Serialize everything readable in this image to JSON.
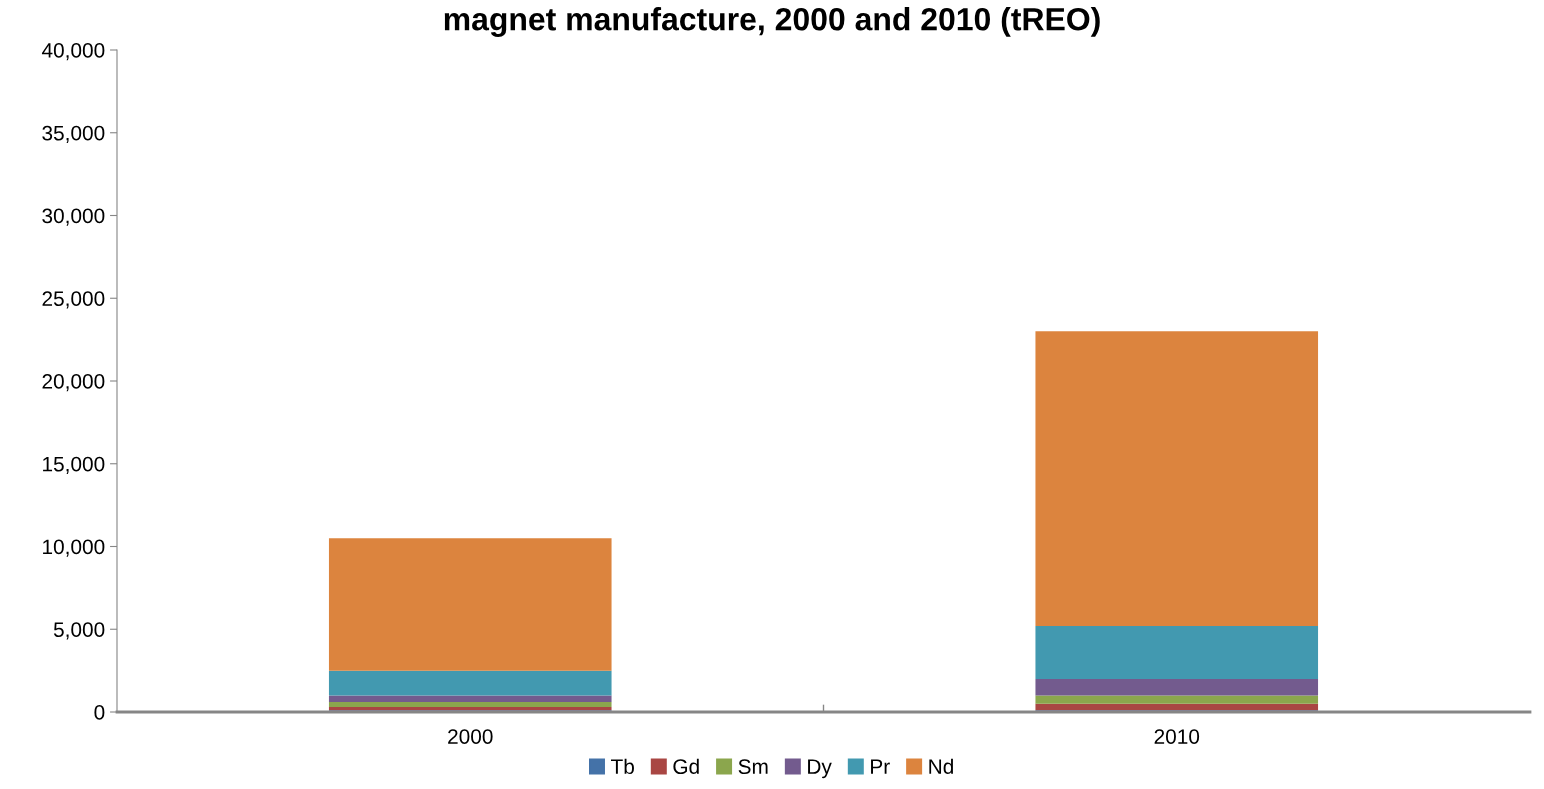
{
  "chart_data": {
    "type": "bar",
    "stacked": true,
    "title": "magnet manufacture, 2000 and 2010 (tREO)",
    "categories": [
      "2000",
      "2010"
    ],
    "series": [
      {
        "name": "Tb",
        "color": "#4472a8",
        "values": [
          100,
          100
        ]
      },
      {
        "name": "Gd",
        "color": "#a94643",
        "values": [
          200,
          400
        ]
      },
      {
        "name": "Sm",
        "color": "#8ba64d",
        "values": [
          300,
          500
        ]
      },
      {
        "name": "Dy",
        "color": "#735b8e",
        "values": [
          400,
          1000
        ]
      },
      {
        "name": "Pr",
        "color": "#4299b0",
        "values": [
          1500,
          3200
        ]
      },
      {
        "name": "Nd",
        "color": "#dc843e",
        "values": [
          8000,
          17800
        ]
      }
    ],
    "ylim": [
      0,
      40000
    ],
    "yticks": [
      0,
      {
        "value": 5000,
        "label": "5,000"
      },
      {
        "value": 10000,
        "label": "10,000"
      },
      {
        "value": 15000,
        "label": "15,000"
      },
      {
        "value": 20000,
        "label": "20,000"
      },
      {
        "value": 25000,
        "label": "25,000"
      },
      {
        "value": 30000,
        "label": "30,000"
      },
      {
        "value": 35000,
        "label": "35,000"
      },
      {
        "value": 40000,
        "label": "40,000"
      }
    ],
    "grid": false,
    "legend": "bottom"
  }
}
